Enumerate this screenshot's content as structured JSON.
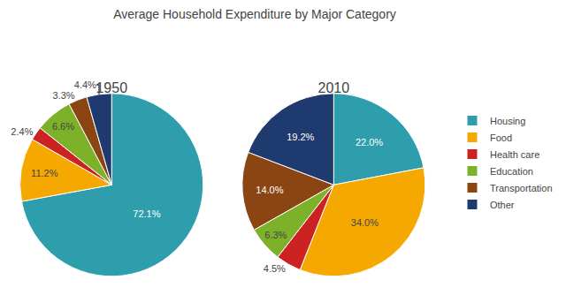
{
  "chart_data": {
    "type": "pie",
    "title": "Average Household Expenditure by Major Category",
    "categories": [
      "Housing",
      "Food",
      "Health care",
      "Education",
      "Transportation",
      "Other"
    ],
    "colors": [
      "#2E9EAD",
      "#F5A800",
      "#CC2222",
      "#7DB12A",
      "#8B4513",
      "#1F3A6E"
    ],
    "series": [
      {
        "name": "1950",
        "values": [
          72.1,
          11.2,
          2.4,
          6.6,
          3.3,
          4.4
        ],
        "value_labels": [
          "72.1%",
          "11.2%",
          "2.4%",
          "6.6%",
          "3.3%",
          "4.4%"
        ]
      },
      {
        "name": "2010",
        "values": [
          22.0,
          34.0,
          4.5,
          6.3,
          14.0,
          19.2
        ],
        "value_labels": [
          "22.0%",
          "34.0%",
          "4.5%",
          "6.3%",
          "14.0%",
          "19.2%"
        ]
      }
    ],
    "data_labels": true,
    "legend": "right"
  }
}
